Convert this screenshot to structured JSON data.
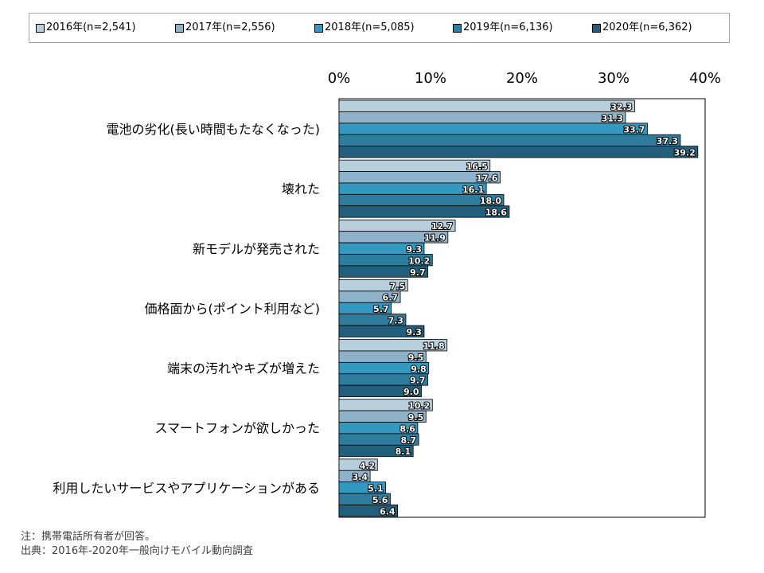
{
  "chart_data": {
    "type": "bar",
    "orientation": "horizontal",
    "categories": [
      "電池の劣化(長い時間もたなくなった)",
      "壊れた",
      "新モデルが発売された",
      "価格面から(ポイント利用など)",
      "端末の汚れやキズが増えた",
      "スマートフォンが欲しかった",
      "利用したいサービスやアプリケーションがある"
    ],
    "series": [
      {
        "name": "2016年(n=2,541)",
        "color": "#b7cedd",
        "values": [
          32.3,
          16.5,
          12.7,
          7.5,
          11.8,
          10.2,
          4.2
        ]
      },
      {
        "name": "2017年(n=2,556)",
        "color": "#8db2c9",
        "values": [
          31.3,
          17.6,
          11.9,
          6.7,
          9.5,
          9.5,
          3.4
        ]
      },
      {
        "name": "2018年(n=5,085)",
        "color": "#3399c0",
        "values": [
          33.7,
          16.1,
          9.3,
          5.7,
          9.8,
          8.6,
          5.1
        ]
      },
      {
        "name": "2019年(n=6,136)",
        "color": "#2f7d9e",
        "values": [
          37.3,
          18.0,
          10.2,
          7.3,
          9.7,
          8.7,
          5.6
        ]
      },
      {
        "name": "2020年(n=6,362)",
        "color": "#215f7c",
        "values": [
          39.2,
          18.6,
          9.7,
          9.3,
          9.0,
          8.1,
          6.4
        ]
      }
    ],
    "xlim": [
      0,
      40
    ],
    "xticks": [
      "0%",
      "10%",
      "20%",
      "30%",
      "40%"
    ],
    "legend_position": "top",
    "grid": false
  },
  "notes": {
    "line1": "注：携帯電話所有者が回答。",
    "line2": "出典：2016年-2020年一般向けモバイル動向調査"
  }
}
